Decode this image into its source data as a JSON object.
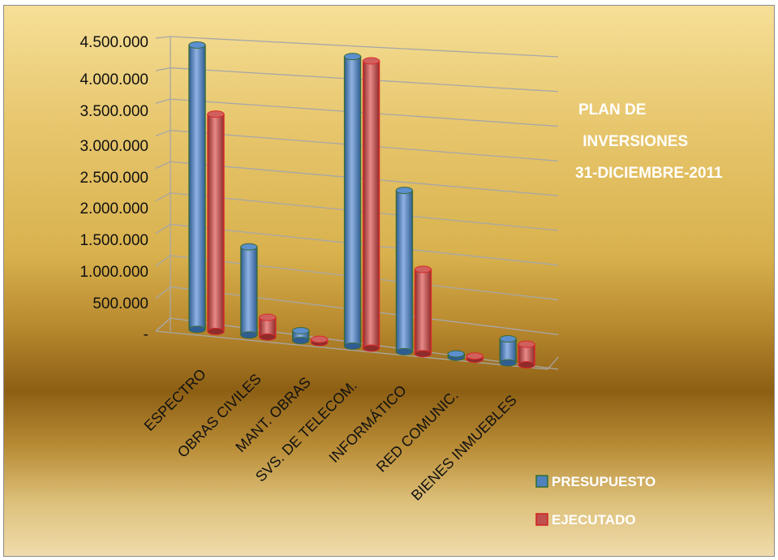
{
  "chart_data": {
    "type": "bar",
    "title": [
      "PLAN DE",
      " INVERSIONES",
      "31-DICIEMBRE-2011"
    ],
    "categories": [
      "ESPECTRO",
      "OBRAS CIVILES",
      "MANT.  OBRAS",
      "SVS. DE TELECOM.",
      "INFORMÁTICO",
      "RED COMUNIC.",
      "BIENES INMUEBLES"
    ],
    "series": [
      {
        "name": "PRESUPUESTO",
        "color": "#4f81bd",
        "values": [
          4400000,
          1350000,
          150000,
          4350000,
          2400000,
          50000,
          350000
        ]
      },
      {
        "name": "EJECUTADO",
        "color": "#c0504d",
        "values": [
          3350000,
          300000,
          20000,
          4300000,
          1250000,
          40000,
          300000
        ]
      }
    ],
    "ylim": [
      0,
      4500000
    ],
    "yticks": [
      "-",
      "500.000",
      "1.000.000",
      "1.500.000",
      "2.000.000",
      "2.500.000",
      "3.000.000",
      "3.500.000",
      "4.000.000",
      "4.500.000"
    ],
    "grid": true,
    "legend_position": "bottom-right"
  }
}
